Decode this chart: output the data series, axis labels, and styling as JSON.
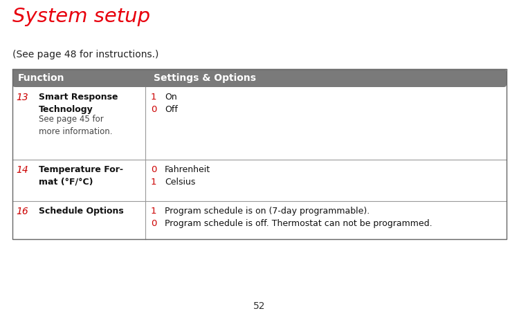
{
  "title": "System setup",
  "subtitle": "(See page 48 for instructions.)",
  "title_color": "#e8000d",
  "subtitle_color": "#222222",
  "header_bg": "#7a7a7a",
  "header_text_color": "#ffffff",
  "header_col1": "Function",
  "header_col2": "Settings & Options",
  "page_number": "52",
  "bg_color": "#ffffff",
  "rows": [
    {
      "func_num": "13",
      "func_name": "Smart Response\nTechnology",
      "func_sub": "See page 45 for\nmore information.",
      "options": [
        {
          "num": "1",
          "text": "On"
        },
        {
          "num": "0",
          "text": "Off"
        }
      ]
    },
    {
      "func_num": "14",
      "func_name": "Temperature For-\nmat (°F/°C)",
      "func_sub": "",
      "options": [
        {
          "num": "0",
          "text": "Fahrenheit"
        },
        {
          "num": "1",
          "text": "Celsius"
        }
      ]
    },
    {
      "func_num": "16",
      "func_name": "Schedule Options",
      "func_sub": "",
      "options": [
        {
          "num": "1",
          "text": "Program schedule is on (7-day programmable)."
        },
        {
          "num": "0",
          "text": "Program schedule is off. Thermostat can not be programmed."
        }
      ]
    }
  ],
  "red_color": "#cc0000",
  "line_color": "#999999",
  "border_color": "#666666",
  "fig_width": 7.5,
  "fig_height": 4.63,
  "dpi": 100
}
